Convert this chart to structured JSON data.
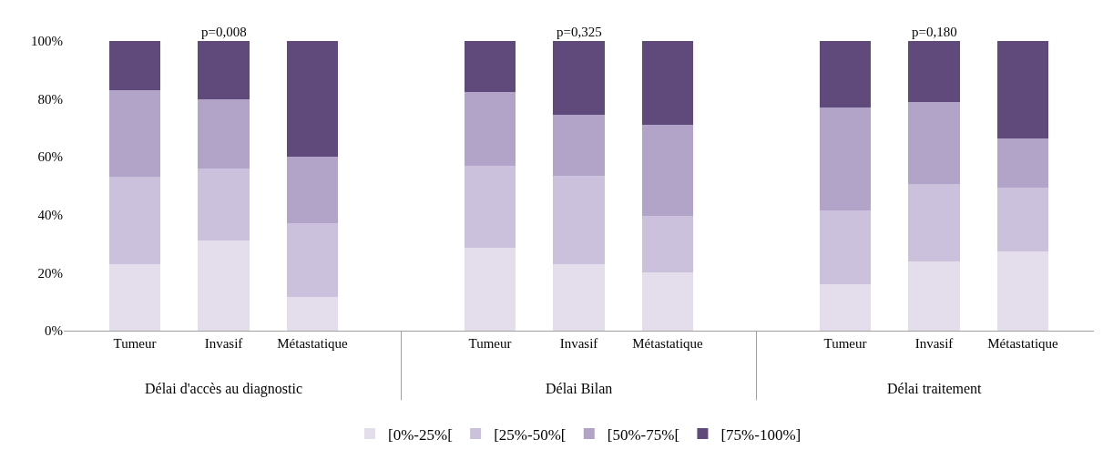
{
  "chart_data": {
    "type": "bar",
    "stacked": true,
    "categories": [
      "Tumeur",
      "Invasif",
      "Métastatique",
      "Tumeur",
      "Invasif",
      "Métastatique",
      "Tumeur",
      "Invasif",
      "Métastatique"
    ],
    "series": [
      {
        "name": "[0%-25%[",
        "color": "#e4deec",
        "values": [
          23,
          31,
          11.5,
          28.5,
          23,
          20,
          16,
          24,
          27.5
        ]
      },
      {
        "name": "[25%-50%[",
        "color": "#cbc1dc",
        "values": [
          30,
          25,
          25.5,
          28.5,
          30.5,
          19.5,
          25.5,
          26.5,
          22
        ]
      },
      {
        "name": "[50%-75%[",
        "color": "#b2a3c8",
        "values": [
          30,
          24,
          23,
          25.5,
          21,
          31.5,
          35.5,
          28.5,
          17
        ]
      },
      {
        "name": "[75%-100%]",
        "color": "#604a7b",
        "values": [
          17,
          20,
          40,
          17.5,
          25.5,
          29,
          23,
          21,
          33.5
        ]
      }
    ],
    "ylim": [
      0,
      100
    ],
    "yticks": [
      {
        "value": 0,
        "label": "0%"
      },
      {
        "value": 20,
        "label": "20%"
      },
      {
        "value": 40,
        "label": "40%"
      },
      {
        "value": 60,
        "label": "60%"
      },
      {
        "value": 80,
        "label": "80%"
      },
      {
        "value": 100,
        "label": "100%"
      }
    ],
    "annotations": [
      "p=0,008",
      "p=0,325",
      "p=0,180",
      "Délai d'accès au diagnostic",
      "Délai Bilan",
      "Délai traitement"
    ],
    "legend": "bottom"
  }
}
